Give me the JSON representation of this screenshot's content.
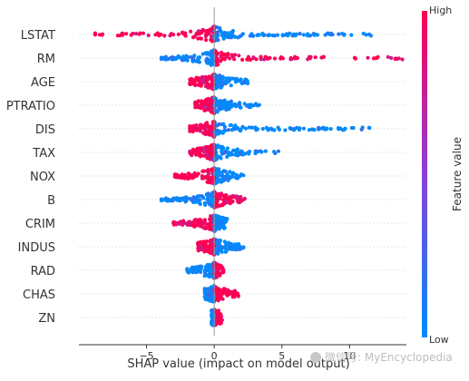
{
  "chart_data": {
    "type": "scatter",
    "subtype": "shap-beeswarm",
    "xlabel": "SHAP value (impact on model output)",
    "xlim": [
      -10,
      14.2
    ],
    "xticks": [
      -5,
      0,
      5,
      10
    ],
    "grid": false,
    "features": [
      "LSTAT",
      "RM",
      "AGE",
      "PTRATIO",
      "DIS",
      "TAX",
      "NOX",
      "B",
      "CRIM",
      "INDUS",
      "RAD",
      "CHAS",
      "ZN"
    ],
    "spread": [
      {
        "feature": "LSTAT",
        "min": -8.8,
        "max": 11.8
      },
      {
        "feature": "RM",
        "min": -3.9,
        "max": 13.9
      },
      {
        "feature": "AGE",
        "min": -1.8,
        "max": 2.6
      },
      {
        "feature": "PTRATIO",
        "min": -1.4,
        "max": 3.4
      },
      {
        "feature": "DIS",
        "min": -1.8,
        "max": 12.7
      },
      {
        "feature": "TAX",
        "min": -1.8,
        "max": 4.9
      },
      {
        "feature": "NOX",
        "min": -2.9,
        "max": 2.2
      },
      {
        "feature": "B",
        "min": -3.9,
        "max": 2.3
      },
      {
        "feature": "CRIM",
        "min": -3.0,
        "max": 1.0
      },
      {
        "feature": "INDUS",
        "min": -1.2,
        "max": 2.2
      },
      {
        "feature": "RAD",
        "min": -2.0,
        "max": 0.7
      },
      {
        "feature": "CHAS",
        "min": -0.7,
        "max": 1.8
      },
      {
        "feature": "ZN",
        "min": -0.2,
        "max": 0.6
      }
    ],
    "colorbar": {
      "label": "Feature value",
      "high_label": "High",
      "low_label": "Low",
      "low_color": "#008bfb",
      "high_color": "#ff0052"
    }
  },
  "watermark": "微信号: MyEncyclopedia"
}
